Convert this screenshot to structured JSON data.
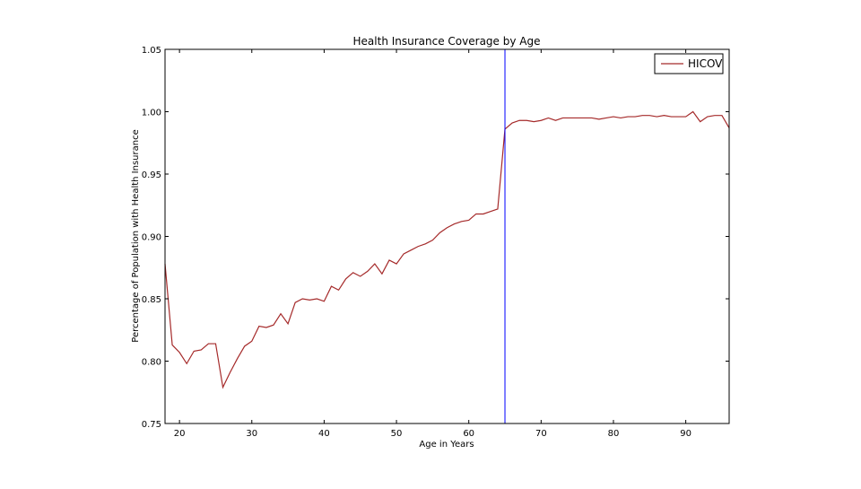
{
  "chart_data": {
    "type": "line",
    "title": "Health Insurance Coverage by Age",
    "xlabel": "Age in Years",
    "ylabel": "Percentage of Population with Health Insurance",
    "xlim": [
      18,
      96
    ],
    "ylim": [
      0.75,
      1.05
    ],
    "x_ticks": [
      20,
      30,
      40,
      50,
      60,
      70,
      80,
      90
    ],
    "y_ticks": [
      0.75,
      0.8,
      0.85,
      0.9,
      0.95,
      1.0,
      1.05
    ],
    "y_tick_labels": [
      "0.75",
      "0.80",
      "0.85",
      "0.90",
      "0.95",
      "1.00",
      "1.05"
    ],
    "grid": false,
    "legend_position": "top-right",
    "vertical_line": {
      "x": 65,
      "color": "#0000ff"
    },
    "series": [
      {
        "name": "HICOV",
        "color": "#a52a2a",
        "x": [
          18,
          19,
          20,
          21,
          22,
          23,
          24,
          25,
          26,
          27,
          28,
          29,
          30,
          31,
          32,
          33,
          34,
          35,
          36,
          37,
          38,
          39,
          40,
          41,
          42,
          43,
          44,
          45,
          46,
          47,
          48,
          49,
          50,
          51,
          52,
          53,
          54,
          55,
          56,
          57,
          58,
          59,
          60,
          61,
          62,
          63,
          64,
          65,
          66,
          67,
          68,
          69,
          70,
          71,
          72,
          73,
          74,
          75,
          76,
          77,
          78,
          79,
          80,
          81,
          82,
          83,
          84,
          85,
          86,
          87,
          88,
          89,
          90,
          91,
          92,
          93,
          94,
          95,
          96
        ],
        "y": [
          0.878,
          0.813,
          0.807,
          0.798,
          0.808,
          0.809,
          0.814,
          0.814,
          0.779,
          0.791,
          0.802,
          0.812,
          0.816,
          0.828,
          0.827,
          0.829,
          0.838,
          0.83,
          0.847,
          0.85,
          0.849,
          0.85,
          0.848,
          0.86,
          0.857,
          0.866,
          0.871,
          0.868,
          0.872,
          0.878,
          0.87,
          0.881,
          0.878,
          0.886,
          0.889,
          0.892,
          0.894,
          0.897,
          0.903,
          0.907,
          0.91,
          0.912,
          0.913,
          0.918,
          0.918,
          0.92,
          0.922,
          0.986,
          0.991,
          0.993,
          0.993,
          0.992,
          0.993,
          0.995,
          0.993,
          0.995,
          0.995,
          0.995,
          0.995,
          0.995,
          0.994,
          0.995,
          0.996,
          0.995,
          0.996,
          0.996,
          0.997,
          0.997,
          0.996,
          0.997,
          0.996,
          0.996,
          0.996,
          1.0,
          0.992,
          0.996,
          0.997,
          0.997,
          0.987
        ]
      }
    ]
  }
}
